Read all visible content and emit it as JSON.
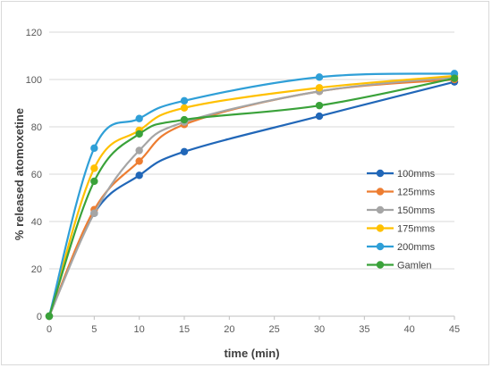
{
  "chart_data": {
    "type": "line",
    "x": [
      0,
      5,
      10,
      15,
      30,
      45
    ],
    "xlabel": "time (min)",
    "ylabel": "% released atomoxetine",
    "xlim": [
      0,
      45
    ],
    "ylim": [
      0,
      120
    ],
    "xticks": [
      0,
      5,
      10,
      15,
      20,
      25,
      30,
      35,
      40,
      45
    ],
    "yticks": [
      0,
      20,
      40,
      60,
      80,
      100,
      120
    ],
    "grid": true,
    "grid_axis": "y",
    "legend_position": "right",
    "series": [
      {
        "name": "100mms",
        "color": "#2167b8",
        "values": [
          0,
          43.5,
          59.5,
          69.5,
          84.5,
          99
        ]
      },
      {
        "name": "125mms",
        "color": "#ed7d31",
        "values": [
          0,
          45,
          65.5,
          81,
          95,
          100
        ]
      },
      {
        "name": "150mms",
        "color": "#a5a5a5",
        "values": [
          0,
          43.5,
          70,
          82,
          95,
          101
        ]
      },
      {
        "name": "175mms",
        "color": "#ffc000",
        "values": [
          0,
          62.5,
          78.5,
          88,
          96.5,
          101.5
        ]
      },
      {
        "name": "200mms",
        "color": "#2f9fd7",
        "values": [
          0,
          71,
          83.5,
          91,
          101,
          102.5
        ]
      },
      {
        "name": "Gamlen",
        "color": "#3aa23a",
        "values": [
          0,
          57,
          77,
          83,
          89,
          100.5
        ]
      }
    ]
  }
}
